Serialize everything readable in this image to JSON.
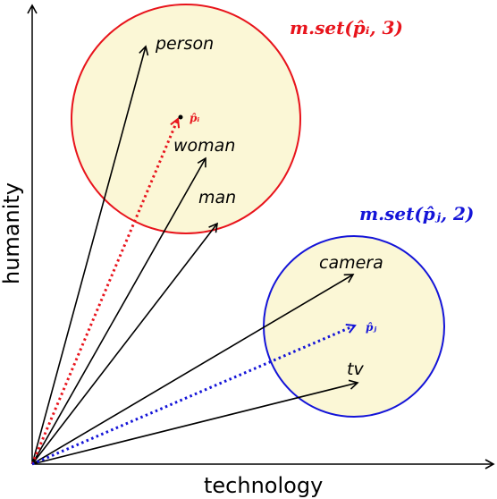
{
  "axes": {
    "x_label": "technology",
    "y_label": "humanity"
  },
  "sets": [
    {
      "label": "m.set(p̂ᵢ, 3)",
      "color": "#e8141c",
      "fill": "#fbf7d6",
      "point_label": "p̂ᵢ"
    },
    {
      "label": "m.set(p̂ⱼ, 2)",
      "color": "#1414d8",
      "fill": "#fbf7d6",
      "point_label": "p̂ⱼ"
    }
  ],
  "words": [
    {
      "id": "person",
      "label": "person"
    },
    {
      "id": "woman",
      "label": "woman"
    },
    {
      "id": "man",
      "label": "man"
    },
    {
      "id": "camera",
      "label": "camera"
    },
    {
      "id": "tv",
      "label": "tv"
    }
  ]
}
